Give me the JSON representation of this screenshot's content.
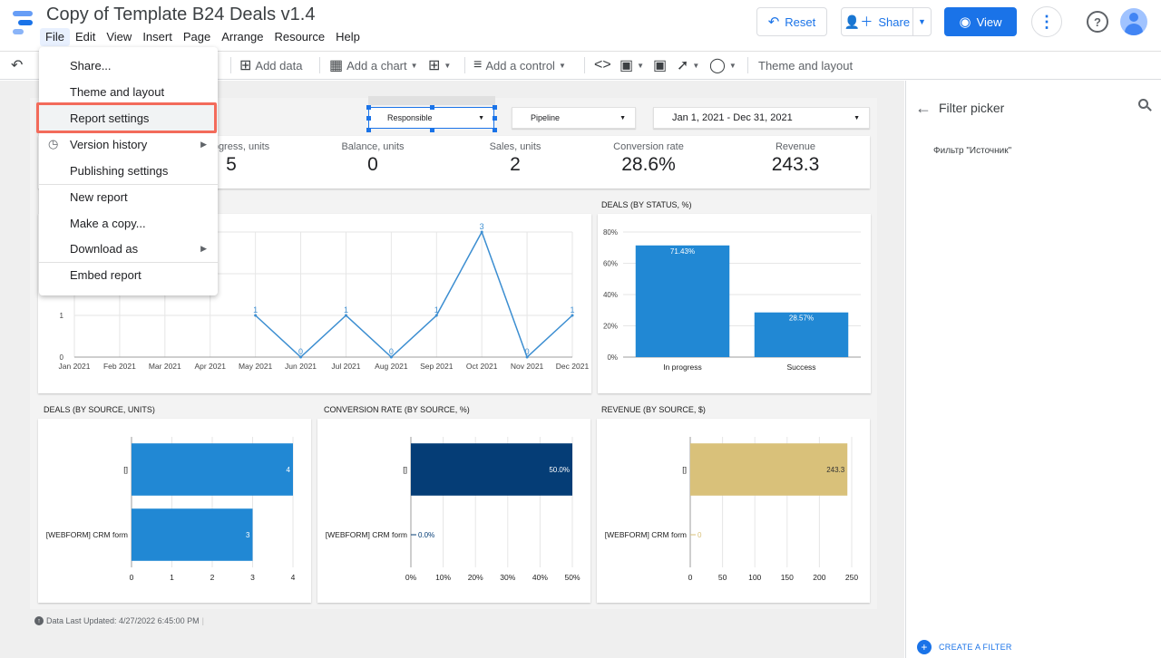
{
  "header": {
    "title": "Copy of Template B24 Deals v1.4",
    "menus": [
      "File",
      "Edit",
      "View",
      "Insert",
      "Page",
      "Arrange",
      "Resource",
      "Help"
    ],
    "reset_label": "Reset",
    "share_label": "Share",
    "view_label": "View"
  },
  "toolbar": {
    "add_data": "Add data",
    "add_chart": "Add a chart",
    "add_control": "Add a control",
    "theme_layout": "Theme and layout"
  },
  "file_menu": {
    "items": [
      "Share...",
      "Theme and layout",
      "Report settings",
      "Version history",
      "Publishing settings",
      "New report",
      "Make a copy...",
      "Download as",
      "Embed report"
    ],
    "highlighted": "Report settings"
  },
  "controls": {
    "responsible": "Responsible",
    "pipeline": "Pipeline",
    "date_range": "Jan 1, 2021 - Dec 31, 2021"
  },
  "scorecards": [
    {
      "label": "In progress, units",
      "value": "5"
    },
    {
      "label": "Balance, units",
      "value": "0"
    },
    {
      "label": "Sales, units",
      "value": "2"
    },
    {
      "label": "Conversion rate",
      "value": "28.6%"
    },
    {
      "label": "Revenue",
      "value": "243.3"
    }
  ],
  "chart_titles": {
    "status": "DEALS (BY STATUS, %)",
    "source_units": "DEALS (BY SOURCE, UNITS)",
    "conversion": "CONVERSION RATE (BY SOURCE, %)",
    "revenue": "REVENUE (BY SOURCE, $)"
  },
  "footer": {
    "updated": "Data Last Updated: 4/27/2022 6:45:00 PM"
  },
  "right_panel": {
    "title": "Filter picker",
    "filter_item": "Фильтр \"Источник\"",
    "create_filter": "CREATE A FILTER"
  },
  "colors": {
    "accent": "#1a73e8",
    "bar_blue": "#2188d4",
    "bar_navy": "#053d76",
    "bar_sand": "#d9c17a",
    "line": "#3c8ed1",
    "highlight": "#f36b5b"
  },
  "chart_data": [
    {
      "type": "line",
      "x": [
        "Jan 2021",
        "Feb 2021",
        "Mar 2021",
        "Apr 2021",
        "May 2021",
        "Jun 2021",
        "Jul 2021",
        "Aug 2021",
        "Sep 2021",
        "Oct 2021",
        "Nov 2021",
        "Dec 2021"
      ],
      "values": [
        null,
        null,
        null,
        null,
        1,
        0,
        1,
        0,
        1,
        3,
        0,
        1
      ],
      "point_labels": [
        "",
        "",
        "",
        "",
        "1",
        "0",
        "1",
        "0",
        "1",
        "3",
        "0",
        "1"
      ],
      "y_ticks": [
        "0",
        "1"
      ],
      "ylim": [
        0,
        3
      ]
    },
    {
      "type": "bar",
      "title": "DEALS (BY STATUS, %)",
      "categories": [
        "In progress",
        "Success"
      ],
      "values": [
        71.43,
        28.57
      ],
      "data_labels": [
        "71.43%",
        "28.57%"
      ],
      "y_ticks": [
        "0%",
        "20%",
        "40%",
        "60%",
        "80%"
      ],
      "ylim": [
        0,
        80
      ]
    },
    {
      "type": "bar",
      "orientation": "horizontal",
      "title": "DEALS (BY SOURCE, UNITS)",
      "categories": [
        "[]",
        "[WEBFORM] CRM form"
      ],
      "values": [
        4,
        3
      ],
      "data_labels": [
        "4",
        "3"
      ],
      "x_ticks": [
        "0",
        "1",
        "2",
        "3",
        "4"
      ],
      "xlim": [
        0,
        4
      ]
    },
    {
      "type": "bar",
      "orientation": "horizontal",
      "title": "CONVERSION RATE (BY SOURCE, %)",
      "categories": [
        "[]",
        "[WEBFORM] CRM form"
      ],
      "values": [
        50,
        0
      ],
      "data_labels": [
        "50.0%",
        "0.0%"
      ],
      "x_ticks": [
        "0%",
        "10%",
        "20%",
        "30%",
        "40%",
        "50%"
      ],
      "xlim": [
        0,
        50
      ]
    },
    {
      "type": "bar",
      "orientation": "horizontal",
      "title": "REVENUE (BY SOURCE, $)",
      "categories": [
        "[]",
        "[WEBFORM] CRM form"
      ],
      "values": [
        243.3,
        0
      ],
      "data_labels": [
        "243.3",
        "0"
      ],
      "x_ticks": [
        "0",
        "50",
        "100",
        "150",
        "200",
        "250"
      ],
      "xlim": [
        0,
        250
      ]
    }
  ]
}
